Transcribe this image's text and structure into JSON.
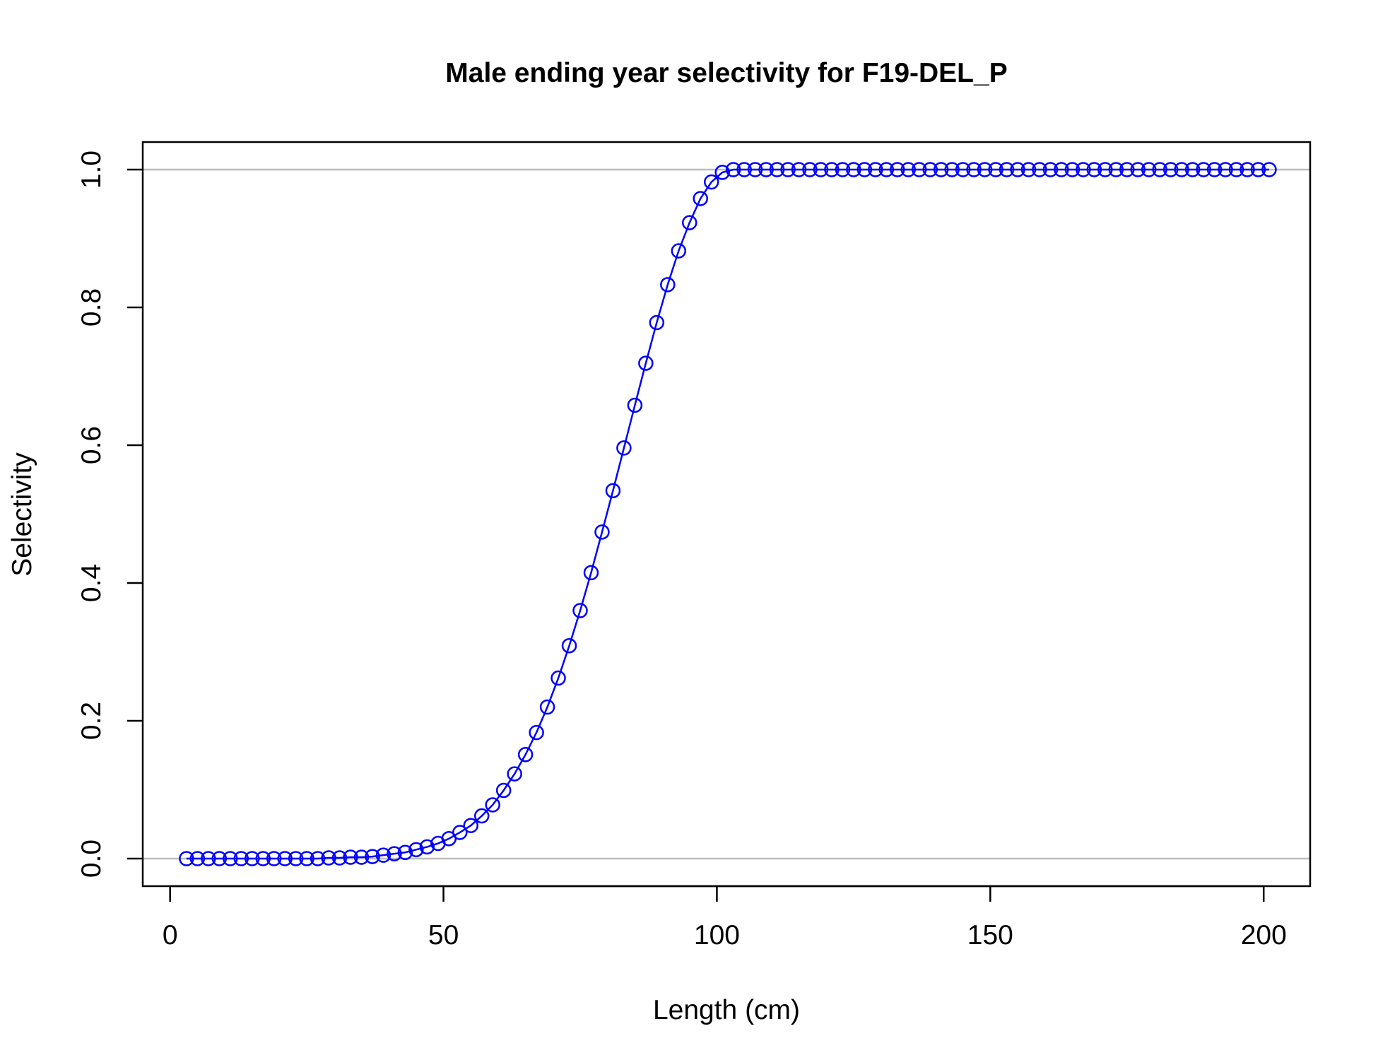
{
  "chart_data": {
    "type": "line",
    "title": "Male ending year selectivity for F19-DEL_P",
    "xlabel": "Length (cm)",
    "ylabel": "Selectivity",
    "xlim": [
      -5.0,
      208.5
    ],
    "ylim": [
      -0.04,
      1.04
    ],
    "xticks": [
      0,
      50,
      100,
      150,
      200
    ],
    "yticks": [
      0.0,
      0.2,
      0.4,
      0.6,
      0.8,
      1.0
    ],
    "xtick_labels": [
      "0",
      "50",
      "100",
      "150",
      "200"
    ],
    "ytick_labels": [
      "0.0",
      "0.2",
      "0.4",
      "0.6",
      "0.8",
      "1.0"
    ],
    "reference_lines_y": [
      0.0,
      1.0
    ],
    "grid": false,
    "series": [
      {
        "color": "#0000ff",
        "marker": "open-circle",
        "x": [
          3,
          5,
          7,
          9,
          11,
          13,
          15,
          17,
          19,
          21,
          23,
          25,
          27,
          29,
          31,
          33,
          35,
          37,
          39,
          41,
          43,
          45,
          47,
          49,
          51,
          53,
          55,
          57,
          59,
          61,
          63,
          65,
          67,
          69,
          71,
          73,
          75,
          77,
          79,
          81,
          83,
          85,
          87,
          89,
          91,
          93,
          95,
          97,
          99,
          101,
          103,
          105,
          107,
          109,
          111,
          113,
          115,
          117,
          119,
          121,
          123,
          125,
          127,
          129,
          131,
          133,
          135,
          137,
          139,
          141,
          143,
          145,
          147,
          149,
          151,
          153,
          155,
          157,
          159,
          161,
          163,
          165,
          167,
          169,
          171,
          173,
          175,
          177,
          179,
          181,
          183,
          185,
          187,
          189,
          191,
          193,
          195,
          197,
          199,
          201
        ],
        "y": [
          0.0,
          0.0,
          0.0,
          0.0,
          0.0,
          0.0,
          0.0,
          0.0,
          0.0,
          0.0,
          0.0,
          0.0,
          0.0,
          0.001,
          0.001,
          0.002,
          0.002,
          0.003,
          0.005,
          0.007,
          0.009,
          0.013,
          0.017,
          0.022,
          0.029,
          0.038,
          0.048,
          0.062,
          0.078,
          0.099,
          0.123,
          0.151,
          0.183,
          0.22,
          0.262,
          0.309,
          0.36,
          0.415,
          0.474,
          0.534,
          0.596,
          0.658,
          0.719,
          0.778,
          0.833,
          0.882,
          0.923,
          0.958,
          0.982,
          0.996,
          1.0,
          1.0,
          1.0,
          1.0,
          1.0,
          1.0,
          1.0,
          1.0,
          1.0,
          1.0,
          1.0,
          1.0,
          1.0,
          1.0,
          1.0,
          1.0,
          1.0,
          1.0,
          1.0,
          1.0,
          1.0,
          1.0,
          1.0,
          1.0,
          1.0,
          1.0,
          1.0,
          1.0,
          1.0,
          1.0,
          1.0,
          1.0,
          1.0,
          1.0,
          1.0,
          1.0,
          1.0,
          1.0,
          1.0,
          1.0,
          1.0,
          1.0,
          1.0,
          1.0,
          1.0,
          1.0,
          1.0,
          1.0,
          1.0,
          1.0
        ]
      }
    ]
  }
}
